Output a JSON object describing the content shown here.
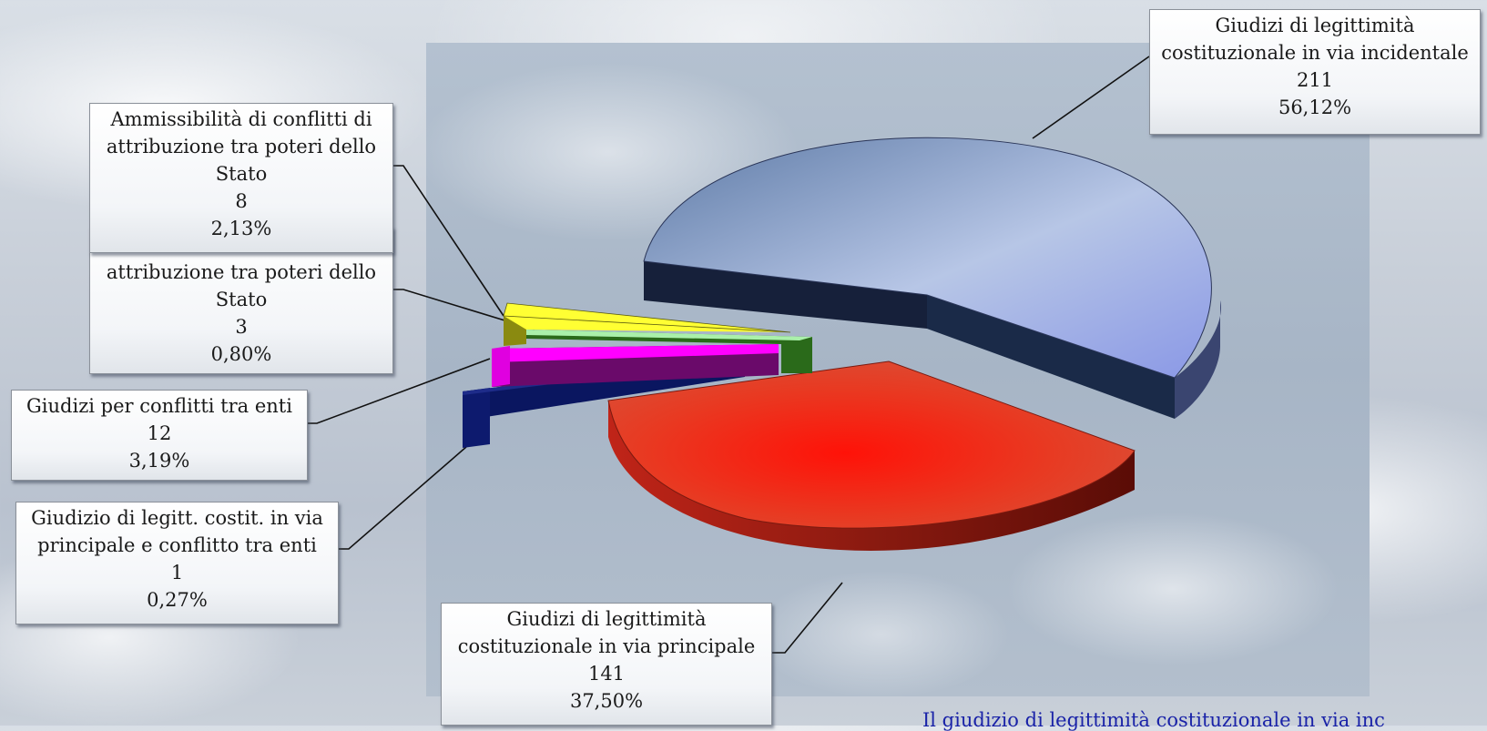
{
  "chart_data": {
    "type": "pie",
    "variant": "3d-exploded",
    "slices": [
      {
        "name": "Giudizi di legittimità costituzionale in via incidentale",
        "value": 211,
        "percent": "56,12%",
        "color": "#8f9fda"
      },
      {
        "name": "Giudizi di legittimità costituzionale in via principale",
        "value": 141,
        "percent": "37,50%",
        "color": "#e8281a"
      },
      {
        "name": "Giudizio di legitt. costit. in via principale e conflitto tra enti",
        "value": 1,
        "percent": "0,27%",
        "color": "#0d1a6e"
      },
      {
        "name": "Giudizi per conflitti tra enti",
        "value": 12,
        "percent": "3,19%",
        "color": "#ff00ff"
      },
      {
        "name": "attribuzione tra poteri dello Stato",
        "value": 3,
        "percent": "0,80%",
        "color": "#aaf0aa"
      },
      {
        "name": "Ammissibilità di conflitti di attribuzione tra poteri dello Stato",
        "value": 8,
        "percent": "2,13%",
        "color": "#ffff33"
      }
    ],
    "labels": [
      {
        "lines": [
          "Giudizi di legittimità",
          "costituzionale in via incidentale"
        ],
        "value": "211",
        "percent": "56,12%"
      },
      {
        "lines": [
          "Giudizi di legittimità",
          "costituzionale in via principale"
        ],
        "value": "141",
        "percent": "37,50%"
      },
      {
        "lines": [
          "Giudizio di legitt. costit. in via",
          "principale e conflitto tra enti"
        ],
        "value": "1",
        "percent": "0,27%"
      },
      {
        "lines": [
          "Giudizi per conflitti tra enti"
        ],
        "value": "12",
        "percent": "3,19%"
      },
      {
        "lines": [
          "attribuzione tra poteri dello",
          "Stato"
        ],
        "value": "3",
        "percent": "0,80%"
      },
      {
        "lines": [
          "Ammissibilità di conflitti di",
          "attribuzione tra poteri dello",
          "Stato"
        ],
        "value": "8",
        "percent": "2,13%"
      }
    ]
  },
  "footer_text": "Il giudizio di legittimità costituzionale in via inc"
}
